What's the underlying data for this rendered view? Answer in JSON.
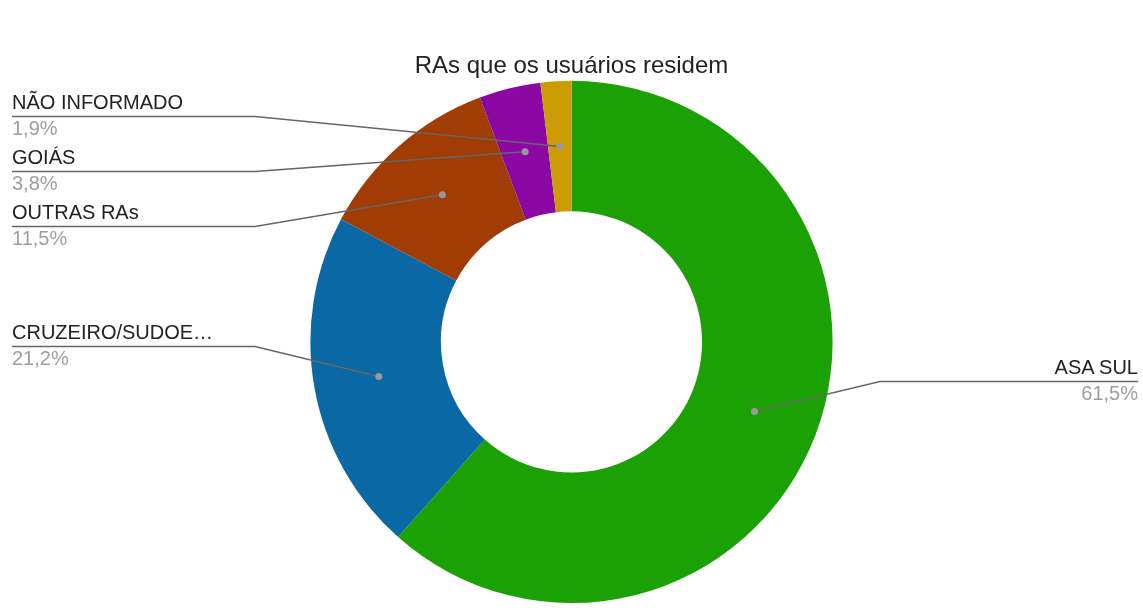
{
  "chart_data": {
    "type": "donut",
    "title": "RAs que os usuários residem",
    "categories": [
      "ASA SUL",
      "CRUZEIRO/SUDOE…",
      "OUTRAS RAs",
      "GOIÁS",
      "NÃO INFORMADO"
    ],
    "values": [
      61.5,
      21.2,
      11.5,
      3.8,
      1.9
    ],
    "colors": [
      "#1ba104",
      "#0a68a4",
      "#a03c04",
      "#8c08a4",
      "#cc9c04"
    ],
    "value_labels": [
      "61,5%",
      "21,2%",
      "11,5%",
      "3,8%",
      "1,9%"
    ],
    "legend": false
  }
}
